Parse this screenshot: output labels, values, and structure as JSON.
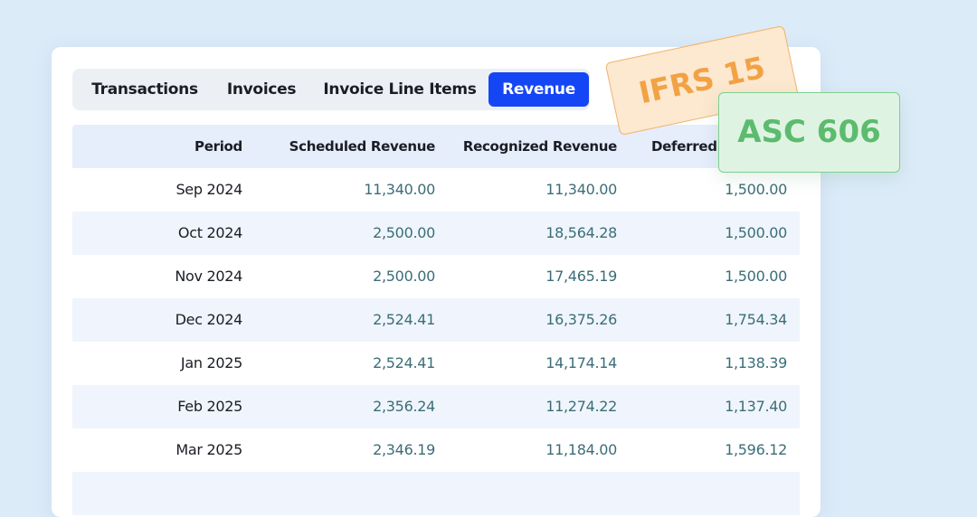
{
  "tabs": [
    "Transactions",
    "Invoices",
    "Invoice Line Items",
    "Revenue"
  ],
  "table": {
    "header": [
      "Period",
      "Scheduled Revenue",
      "Recognized Revenue",
      "Deferred"
    ],
    "rows": [
      [
        "Sep 2024",
        "11,340.00",
        "11,340.00",
        "1,500.00"
      ],
      [
        "Oct 2024",
        "2,500.00",
        "18,564.28",
        "1,500.00"
      ],
      [
        "Nov 2024",
        "2,500.00",
        "17,465.19",
        "1,500.00"
      ],
      [
        "Dec 2024",
        "2,524.41",
        "16,375.26",
        "1,754.34"
      ],
      [
        "Jan 2025",
        "2,524.41",
        "14,174.14",
        "1,138.39"
      ],
      [
        "Feb 2025",
        "2,356.24",
        "11,274.22",
        "1,137.40"
      ],
      [
        "Mar 2025",
        "2,346.19",
        "11,184.00",
        "1,596.12"
      ]
    ]
  },
  "badges": [
    "IFRS 15",
    "ASC 606"
  ]
}
